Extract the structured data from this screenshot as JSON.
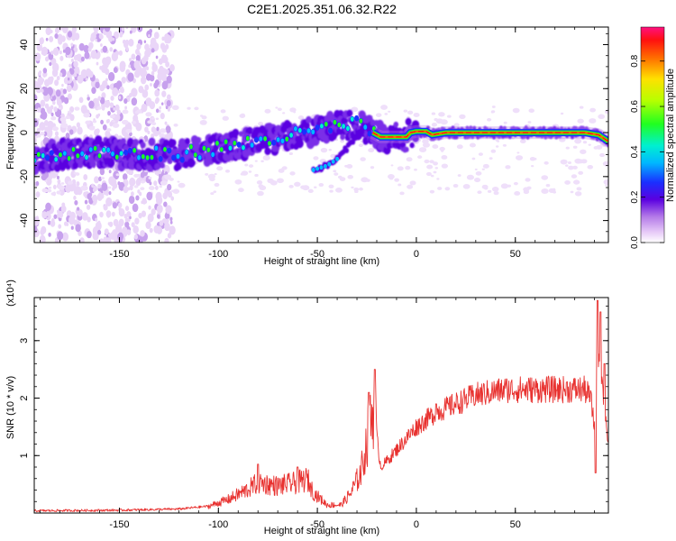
{
  "title": "C2E1.2025.351.06.32.R22",
  "chart_data": [
    {
      "type": "heatmap",
      "xlabel": "Height of straight line (km)",
      "ylabel": "Frequency (Hz)",
      "xlim": [
        -193,
        97
      ],
      "ylim": [
        -50,
        48
      ],
      "x_ticks": [
        -150,
        -100,
        -50,
        0,
        50
      ],
      "y_ticks": [
        -40,
        -20,
        0,
        20,
        40
      ],
      "x_tick_labels": [
        "-150",
        "-100",
        "-50",
        "0",
        "50"
      ],
      "y_tick_labels": [
        "-40",
        "-20",
        "0",
        "20",
        "40"
      ],
      "colorbar": {
        "label": "Normalized spectral amplitude",
        "range": [
          0,
          0.95
        ],
        "ticks": [
          0.0,
          0.2,
          0.4,
          0.6,
          0.8
        ],
        "tick_labels": [
          "0.0",
          "0.2",
          "0.4",
          "0.6",
          "0.8"
        ]
      },
      "ridge_main": [
        {
          "x": -193,
          "y": -12
        },
        {
          "x": -180,
          "y": -10
        },
        {
          "x": -160,
          "y": -9
        },
        {
          "x": -140,
          "y": -10
        },
        {
          "x": -120,
          "y": -10
        },
        {
          "x": -100,
          "y": -7
        },
        {
          "x": -80,
          "y": -4
        },
        {
          "x": -60,
          "y": -1
        },
        {
          "x": -45,
          "y": 2
        },
        {
          "x": -30,
          "y": 4
        },
        {
          "x": -22,
          "y": 0
        },
        {
          "x": -18,
          "y": -2
        },
        {
          "x": -10,
          "y": -2
        },
        {
          "x": -5,
          "y": -2
        },
        {
          "x": -3,
          "y": 0
        },
        {
          "x": 0,
          "y": 0.5
        },
        {
          "x": 5,
          "y": 0.5
        },
        {
          "x": 8,
          "y": -1
        },
        {
          "x": 15,
          "y": 0
        },
        {
          "x": 30,
          "y": 0
        },
        {
          "x": 60,
          "y": 0
        },
        {
          "x": 85,
          "y": 0
        },
        {
          "x": 92,
          "y": -1
        },
        {
          "x": 97,
          "y": -4
        }
      ],
      "ridge_branch": [
        {
          "x": -52,
          "y": -17
        },
        {
          "x": -45,
          "y": -15
        },
        {
          "x": -40,
          "y": -12
        },
        {
          "x": -35,
          "y": -7
        },
        {
          "x": -30,
          "y": -1
        },
        {
          "x": -26,
          "y": 2
        }
      ]
    },
    {
      "type": "line",
      "xlabel": "Height of straight line (km)",
      "ylabel": "SNR (10 * v/v)",
      "y_multiplier": "(x10⁴)",
      "xlim": [
        -193,
        97
      ],
      "ylim": [
        0,
        3.75
      ],
      "x_ticks": [
        -150,
        -100,
        -50,
        0,
        50
      ],
      "y_ticks": [
        1,
        2,
        3
      ],
      "x_tick_labels": [
        "-150",
        "-100",
        "-50",
        "0",
        "50"
      ],
      "y_tick_labels": [
        "1",
        "2",
        "3"
      ],
      "series": [
        {
          "color": "#e8312f",
          "envelope": [
            {
              "x": -193,
              "y": 0.02
            },
            {
              "x": -150,
              "y": 0.03
            },
            {
              "x": -120,
              "y": 0.05
            },
            {
              "x": -105,
              "y": 0.1
            },
            {
              "x": -95,
              "y": 0.2
            },
            {
              "x": -85,
              "y": 0.35
            },
            {
              "x": -80,
              "y": 0.45
            },
            {
              "x": -70,
              "y": 0.4
            },
            {
              "x": -60,
              "y": 0.45
            },
            {
              "x": -55,
              "y": 0.5
            },
            {
              "x": -52,
              "y": 0.3
            },
            {
              "x": -45,
              "y": 0.12
            },
            {
              "x": -38,
              "y": 0.12
            },
            {
              "x": -33,
              "y": 0.3
            },
            {
              "x": -28,
              "y": 0.6
            },
            {
              "x": -24,
              "y": 1.2
            },
            {
              "x": -21,
              "y": 1.6
            },
            {
              "x": -18,
              "y": 0.8
            },
            {
              "x": -15,
              "y": 0.9
            },
            {
              "x": -10,
              "y": 1.1
            },
            {
              "x": -5,
              "y": 1.3
            },
            {
              "x": 0,
              "y": 1.5
            },
            {
              "x": 10,
              "y": 1.75
            },
            {
              "x": 20,
              "y": 1.9
            },
            {
              "x": 30,
              "y": 2.05
            },
            {
              "x": 45,
              "y": 2.15
            },
            {
              "x": 60,
              "y": 2.15
            },
            {
              "x": 75,
              "y": 2.15
            },
            {
              "x": 85,
              "y": 2.15
            },
            {
              "x": 88,
              "y": 2.0
            },
            {
              "x": 90,
              "y": 1.5
            },
            {
              "x": 92,
              "y": 2.8
            },
            {
              "x": 94,
              "y": 2.2
            },
            {
              "x": 97,
              "y": 1.2
            }
          ],
          "spikes": [
            {
              "x": -80,
              "y": 0.85
            },
            {
              "x": -60,
              "y": 0.8
            },
            {
              "x": -24,
              "y": 2.1
            },
            {
              "x": -21,
              "y": 2.5
            },
            {
              "x": 10,
              "y": 1.9
            },
            {
              "x": 90.5,
              "y": 0.7
            },
            {
              "x": 91.5,
              "y": 3.7
            },
            {
              "x": 93,
              "y": 3.5
            },
            {
              "x": 95,
              "y": 2.6
            }
          ]
        }
      ]
    }
  ]
}
